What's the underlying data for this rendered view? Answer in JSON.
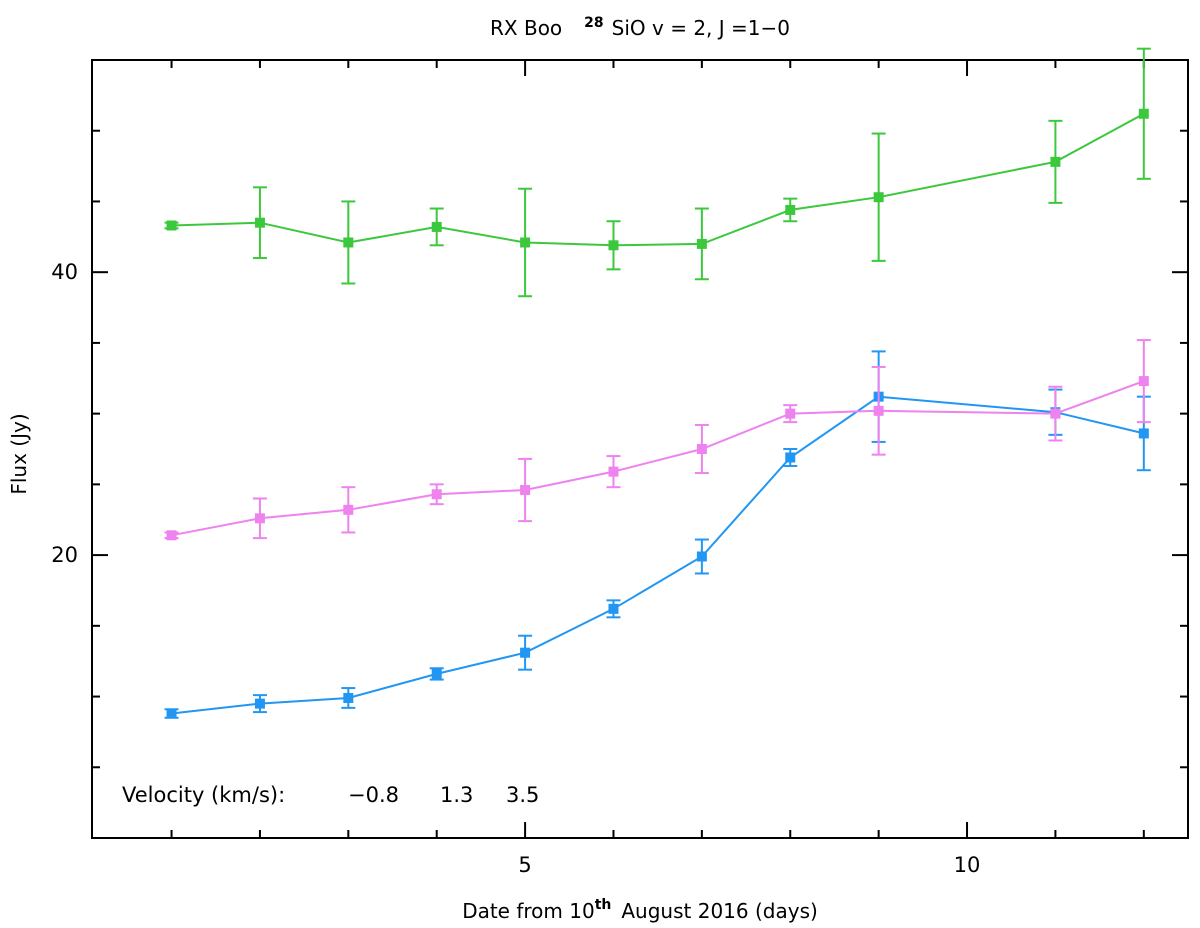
{
  "chart_data": {
    "type": "line",
    "title": {
      "prefix": "RX Boo",
      "superscript": "28",
      "suffix": "SiO v = 2, J =1−0"
    },
    "xlabel": {
      "prefix": "Date from 10",
      "superscript": "th",
      "suffix": "August 2016 (days)"
    },
    "ylabel": "Flux (Jy)",
    "xlim": [
      0.1,
      12.5
    ],
    "ylim": [
      0,
      55
    ],
    "x_major_ticks": [
      5,
      10
    ],
    "x_minor_ticks": [
      1,
      2,
      3,
      4,
      6,
      7,
      8,
      9,
      11,
      12
    ],
    "y_major_ticks": [
      20,
      40
    ],
    "y_minor_ticks": [
      5,
      10,
      15,
      25,
      30,
      35,
      45,
      50
    ],
    "legend": {
      "label": "Velocity (km/s):",
      "position": "bottom-left",
      "entries": [
        "−0.8",
        "1.3",
        "3.5"
      ]
    },
    "series": [
      {
        "name": "-0.8",
        "color": "#2196F3",
        "x": [
          1,
          2,
          3,
          4,
          5,
          6,
          7,
          8,
          9,
          11,
          12
        ],
        "y": [
          8.8,
          9.5,
          9.9,
          11.6,
          13.1,
          16.2,
          19.9,
          26.9,
          31.2,
          30.1,
          28.6
        ],
        "err": [
          0.3,
          0.6,
          0.7,
          0.4,
          1.2,
          0.6,
          1.2,
          0.6,
          3.2,
          1.6,
          2.6
        ]
      },
      {
        "name": "1.3",
        "color": "#EE82EE",
        "x": [
          1,
          2,
          3,
          4,
          5,
          6,
          7,
          8,
          9,
          11,
          12
        ],
        "y": [
          21.4,
          22.6,
          23.2,
          24.3,
          24.6,
          25.9,
          27.5,
          30.0,
          30.2,
          30.0,
          32.3
        ],
        "err": [
          0.2,
          1.4,
          1.6,
          0.7,
          2.2,
          1.1,
          1.7,
          0.6,
          3.1,
          1.9,
          2.9
        ]
      },
      {
        "name": "3.5",
        "color": "#3CC83C",
        "x": [
          1,
          2,
          3,
          4,
          5,
          6,
          7,
          8,
          9,
          11,
          12
        ],
        "y": [
          43.3,
          43.5,
          42.1,
          43.2,
          42.1,
          41.9,
          42.0,
          44.4,
          45.3,
          47.8,
          51.2
        ],
        "err": [
          0.2,
          2.5,
          2.9,
          1.3,
          3.8,
          1.7,
          2.5,
          0.8,
          4.5,
          2.9,
          4.6
        ]
      }
    ]
  }
}
